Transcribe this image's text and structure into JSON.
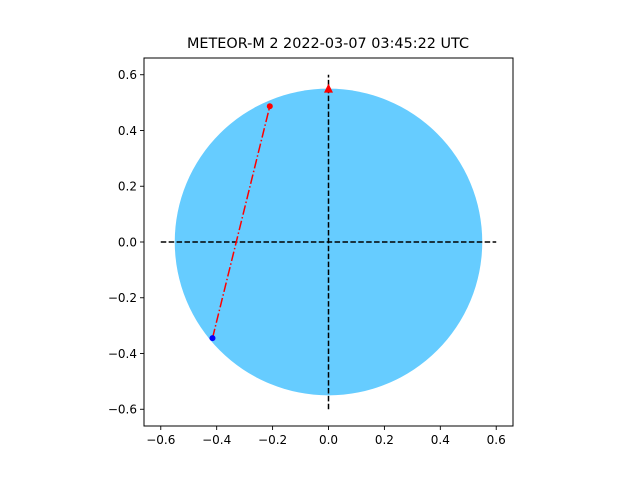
{
  "chart_data": {
    "type": "scatter",
    "title": "METEOR-M 2   2022-03-07   03:45:22 UTC",
    "xlabel": "",
    "ylabel": "",
    "xlim": [
      -0.66,
      0.66
    ],
    "ylim": [
      -0.66,
      0.66
    ],
    "xticks": [
      -0.6,
      -0.4,
      -0.2,
      0.0,
      0.2,
      0.4,
      0.6
    ],
    "yticks": [
      -0.6,
      -0.4,
      -0.2,
      0.0,
      0.2,
      0.4,
      0.6
    ],
    "xtick_labels": [
      "−0.6",
      "−0.4",
      "−0.2",
      "0.0",
      "0.2",
      "0.4",
      "0.6"
    ],
    "ytick_labels": [
      "−0.6",
      "−0.4",
      "−0.2",
      "0.0",
      "0.2",
      "0.4",
      "0.6"
    ],
    "grid": false,
    "disk": {
      "center": [
        0.0,
        0.0
      ],
      "radius": 0.55,
      "color": "#66ccff"
    },
    "crosshair": {
      "horizontal": {
        "x": [
          -0.6,
          0.6
        ],
        "y": 0.0
      },
      "vertical": {
        "x": 0.0,
        "y": [
          -0.6,
          0.6
        ]
      },
      "color": "#000000",
      "style": "dashed"
    },
    "north_marker": {
      "x": 0.0,
      "y": 0.55,
      "shape": "triangle-up",
      "color": "#ff0000"
    },
    "track": {
      "x": [
        -0.415,
        -0.21
      ],
      "y": [
        -0.345,
        0.487
      ],
      "color": "#ff0000",
      "style": "dash-dot"
    },
    "track_start": {
      "x": -0.415,
      "y": -0.345,
      "color": "#0000ff"
    },
    "track_end": {
      "x": -0.21,
      "y": 0.487,
      "color": "#ff0000"
    }
  }
}
